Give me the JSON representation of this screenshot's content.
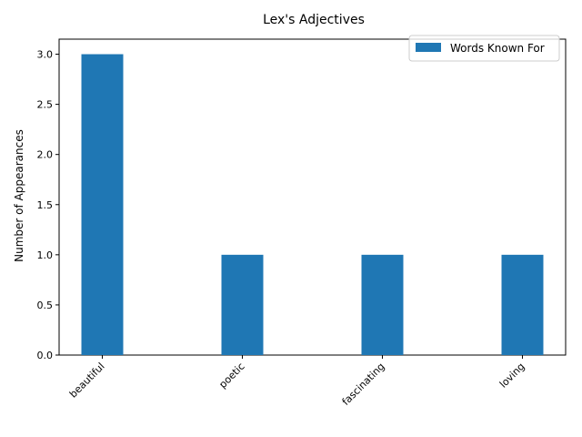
{
  "chart_data": {
    "type": "bar",
    "title": "Lex's Adjectives",
    "xlabel": "",
    "ylabel": "Number of Appearances",
    "categories": [
      "beautiful",
      "poetic",
      "fascinating",
      "loving"
    ],
    "series": [
      {
        "name": "Words Known For",
        "values": [
          3,
          1,
          1,
          1
        ],
        "color": "#1f77b4"
      }
    ],
    "ylim": [
      0,
      3.15
    ],
    "yticks": [
      0,
      0.5,
      1,
      1.5,
      2,
      2.5,
      3
    ],
    "ytick_labels": [
      "0.0",
      "0.5",
      "1.0",
      "1.5",
      "2.0",
      "2.5",
      "3.0"
    ],
    "grid": false,
    "legend": "top-right"
  }
}
